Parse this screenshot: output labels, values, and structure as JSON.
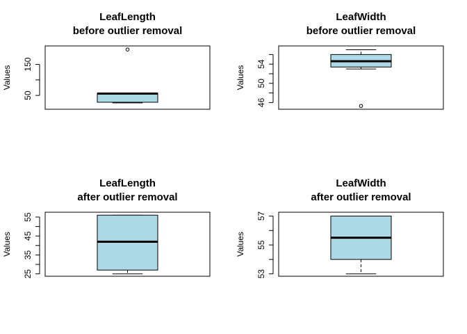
{
  "chart_data": [
    {
      "type": "box",
      "title": "LeafLength",
      "subtitle": "before outlier removal",
      "ylabel": "Values",
      "ylim": [
        13,
        202
      ],
      "ticks": [
        50,
        100,
        150
      ],
      "tick_labels": [
        "50",
        "",
        "150"
      ],
      "box_fill": "#add8e6",
      "stats": {
        "min": 26,
        "q1": 28,
        "median": 56,
        "q3": 57,
        "max": 57
      },
      "outliers": [
        198
      ]
    },
    {
      "type": "box",
      "title": "LeafWidth",
      "subtitle": "before outlier removal",
      "ylabel": "Values",
      "ylim": [
        45.1,
        57.3
      ],
      "ticks": [
        46,
        48,
        50,
        52,
        54,
        56
      ],
      "tick_labels": [
        "46",
        "",
        "50",
        "",
        "54",
        ""
      ],
      "box_fill": "#add8e6",
      "stats": {
        "min": 53,
        "q1": 53.4,
        "median": 54.6,
        "q3": 56,
        "max": 57
      },
      "outliers": [
        45.3
      ]
    },
    {
      "type": "box",
      "title": "LeafLength",
      "subtitle": "after outlier removal",
      "ylabel": "Values",
      "ylim": [
        25,
        56.3
      ],
      "ticks": [
        25,
        30,
        35,
        40,
        45,
        50,
        55
      ],
      "tick_labels": [
        "25",
        "",
        "35",
        "",
        "45",
        "",
        "55"
      ],
      "box_fill": "#add8e6",
      "stats": {
        "min": 25,
        "q1": 27,
        "median": 42,
        "q3": 56,
        "max": 56
      },
      "outliers": []
    },
    {
      "type": "box",
      "title": "LeafWidth",
      "subtitle": "after outlier removal",
      "ylabel": "Values",
      "ylim": [
        53,
        57.1
      ],
      "ticks": [
        53,
        54,
        55,
        56,
        57
      ],
      "tick_labels": [
        "53",
        "",
        "55",
        "",
        "57"
      ],
      "box_fill": "#add8e6",
      "stats": {
        "min": 53,
        "q1": 54,
        "median": 55.5,
        "q3": 57,
        "max": 57
      },
      "outliers": []
    }
  ]
}
